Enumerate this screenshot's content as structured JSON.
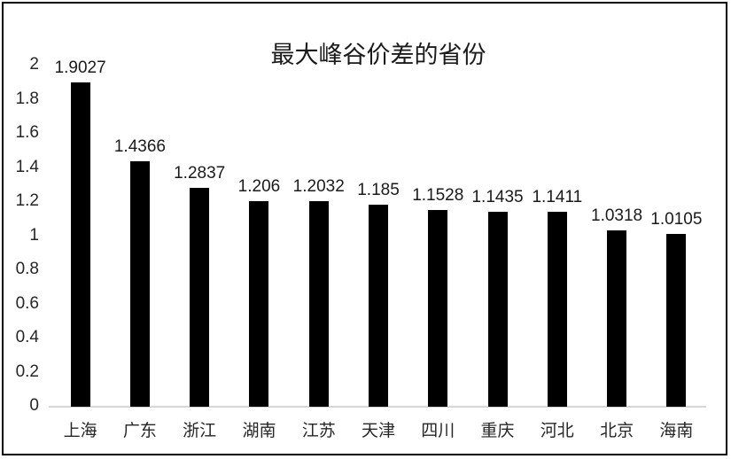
{
  "chart_data": {
    "type": "bar",
    "title": "最大峰谷价差的省份",
    "categories": [
      "上海",
      "广东",
      "浙江",
      "湖南",
      "江苏",
      "天津",
      "四川",
      "重庆",
      "河北",
      "北京",
      "海南"
    ],
    "values": [
      1.9027,
      1.4366,
      1.2837,
      1.206,
      1.2032,
      1.185,
      1.1528,
      1.1435,
      1.1411,
      1.0318,
      1.0105
    ],
    "data_labels": [
      "1.9027",
      "1.4366",
      "1.2837",
      "1.206",
      "1.2032",
      "1.185",
      "1.1528",
      "1.1435",
      "1.1411",
      "1.0318",
      "1.0105"
    ],
    "xlabel": "",
    "ylabel": "",
    "ylim": [
      0,
      2
    ],
    "ytick_step": 0.2,
    "ytick_labels": [
      "0",
      "0.2",
      "0.4",
      "0.6",
      "0.8",
      "1",
      "1.2",
      "1.4",
      "1.6",
      "1.8",
      "2"
    ],
    "grid": false,
    "legend": "none",
    "bar_color": "#000000",
    "axis_line_color": "#d6d6d6",
    "background": "#ffffff",
    "frame_border_color": "#000000"
  }
}
